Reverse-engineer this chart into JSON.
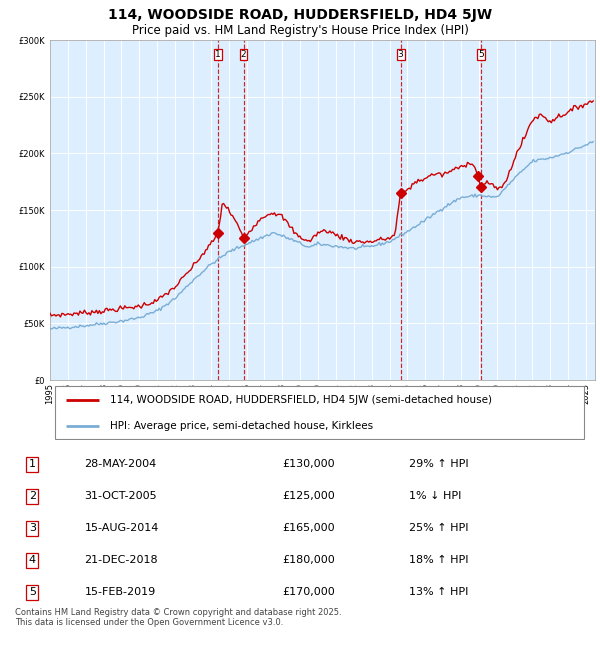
{
  "title": "114, WOODSIDE ROAD, HUDDERSFIELD, HD4 5JW",
  "subtitle": "Price paid vs. HM Land Registry's House Price Index (HPI)",
  "hpi_label": "HPI: Average price, semi-detached house, Kirklees",
  "property_label": "114, WOODSIDE ROAD, HUDDERSFIELD, HD4 5JW (semi-detached house)",
  "transactions": [
    {
      "num": 1,
      "date": "28-MAY-2004",
      "year": 2004.41,
      "price": 130000,
      "pct": "29%",
      "dir": "↑"
    },
    {
      "num": 2,
      "date": "31-OCT-2005",
      "year": 2005.83,
      "price": 125000,
      "pct": "1%",
      "dir": "↓"
    },
    {
      "num": 3,
      "date": "15-AUG-2014",
      "year": 2014.62,
      "price": 165000,
      "pct": "25%",
      "dir": "↑"
    },
    {
      "num": 4,
      "date": "21-DEC-2018",
      "year": 2018.97,
      "price": 180000,
      "pct": "18%",
      "dir": "↑"
    },
    {
      "num": 5,
      "date": "15-FEB-2019",
      "year": 2019.12,
      "price": 170000,
      "pct": "13%",
      "dir": "↑"
    }
  ],
  "shown_on_chart": [
    1,
    2,
    3,
    5
  ],
  "property_color": "#cc0000",
  "hpi_color": "#7aadd4",
  "background_color": "#ddeeff",
  "vline_color": "#cc0000",
  "marker_color": "#cc0000",
  "grid_color": "#ffffff",
  "ylim": [
    0,
    300000
  ],
  "xlim_start": 1995,
  "xlim_end": 2025.5,
  "footer": "Contains HM Land Registry data © Crown copyright and database right 2025.\nThis data is licensed under the Open Government Licence v3.0.",
  "title_fontsize": 10,
  "subtitle_fontsize": 8.5,
  "tick_fontsize": 6,
  "legend_fontsize": 7.5,
  "table_fontsize": 8,
  "footer_fontsize": 6
}
